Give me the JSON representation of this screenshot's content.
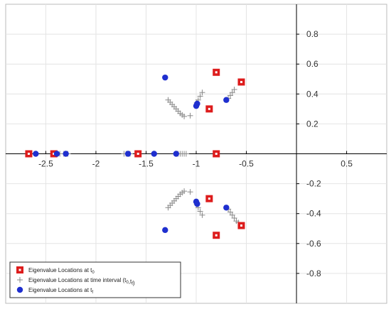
{
  "chart_data": {
    "type": "scatter",
    "title": "",
    "xlabel": "",
    "ylabel": "",
    "xlim": [
      -2.9,
      0.9
    ],
    "ylim": [
      -1.0,
      1.0
    ],
    "grid": true,
    "legend_position": "bottom-left",
    "x_ticks": [
      -2.5,
      -2,
      -1.5,
      -1,
      -0.5,
      0.5
    ],
    "x_tick_labels": [
      "-2.5",
      "-2",
      "-1.5",
      "-1",
      "-0.5",
      "0.5"
    ],
    "y_ticks": [
      0.8,
      0.6,
      0.4,
      0.2,
      -0.2,
      -0.4,
      -0.6,
      -0.8
    ],
    "y_tick_labels": [
      "0.8",
      "0.6",
      "0.4",
      "0.2",
      "-0.2",
      "-0.4",
      "-0.6",
      "-0.8"
    ],
    "colors": {
      "t0": "#dd1c1c",
      "interval": "#888888",
      "tf": "#1f2fcf"
    },
    "series": [
      {
        "key": "t0",
        "marker": "square",
        "legend": {
          "main": "Eigenvalue Locations at t",
          "sub": "0",
          "tail": ""
        },
        "points": [
          [
            -2.67,
            0
          ],
          [
            -2.42,
            0
          ],
          [
            -1.58,
            0
          ],
          [
            -0.8,
            0
          ],
          [
            -0.55,
            0.48
          ],
          [
            -0.55,
            -0.48
          ],
          [
            -0.8,
            0.545
          ],
          [
            -0.8,
            -0.545
          ],
          [
            -0.87,
            0.3
          ],
          [
            -0.87,
            -0.3
          ]
        ]
      },
      {
        "key": "interval",
        "marker": "plus",
        "legend": {
          "main": "Eigenvalue Locations at time interval (t",
          "sub": "0",
          "tail": ",t",
          "sub2": "f",
          "tail2": ")"
        },
        "points": [
          [
            -2.42,
            0
          ],
          [
            -2.4,
            0
          ],
          [
            -2.38,
            0
          ],
          [
            -2.36,
            0
          ],
          [
            -2.32,
            0
          ],
          [
            -2.3,
            0
          ],
          [
            -2.28,
            0
          ],
          [
            -1.72,
            0
          ],
          [
            -1.7,
            0
          ],
          [
            -1.68,
            0
          ],
          [
            -1.66,
            0
          ],
          [
            -1.2,
            0
          ],
          [
            -1.18,
            0
          ],
          [
            -1.16,
            0
          ],
          [
            -1.14,
            0
          ],
          [
            -1.12,
            0
          ],
          [
            -1.1,
            0
          ],
          [
            -1.28,
            0.36
          ],
          [
            -1.26,
            0.345
          ],
          [
            -1.24,
            0.33
          ],
          [
            -1.22,
            0.315
          ],
          [
            -1.2,
            0.3
          ],
          [
            -1.18,
            0.285
          ],
          [
            -1.16,
            0.27
          ],
          [
            -1.14,
            0.26
          ],
          [
            -1.12,
            0.25
          ],
          [
            -1.06,
            0.255
          ],
          [
            -1.28,
            -0.36
          ],
          [
            -1.26,
            -0.345
          ],
          [
            -1.24,
            -0.33
          ],
          [
            -1.22,
            -0.315
          ],
          [
            -1.2,
            -0.3
          ],
          [
            -1.18,
            -0.285
          ],
          [
            -1.16,
            -0.27
          ],
          [
            -1.14,
            -0.26
          ],
          [
            -1.12,
            -0.25
          ],
          [
            -1.06,
            -0.255
          ],
          [
            -0.995,
            0.34
          ],
          [
            -0.98,
            0.36
          ],
          [
            -0.96,
            0.385
          ],
          [
            -0.94,
            0.41
          ],
          [
            -0.995,
            -0.34
          ],
          [
            -0.98,
            -0.36
          ],
          [
            -0.96,
            -0.385
          ],
          [
            -0.94,
            -0.41
          ],
          [
            -0.68,
            0.37
          ],
          [
            -0.66,
            0.39
          ],
          [
            -0.64,
            0.41
          ],
          [
            -0.62,
            0.43
          ],
          [
            -0.68,
            -0.37
          ],
          [
            -0.66,
            -0.39
          ],
          [
            -0.64,
            -0.41
          ],
          [
            -0.62,
            -0.43
          ],
          [
            -0.6,
            -0.45
          ],
          [
            -0.58,
            -0.46
          ]
        ]
      },
      {
        "key": "tf",
        "marker": "circle",
        "legend": {
          "main": "Eigenvalue Locations at t",
          "sub": "f",
          "tail": ""
        },
        "points": [
          [
            -2.6,
            0
          ],
          [
            -2.39,
            0
          ],
          [
            -2.3,
            0
          ],
          [
            -1.2,
            0
          ],
          [
            -1.42,
            0
          ],
          [
            -1.68,
            0
          ],
          [
            -1.31,
            0.51
          ],
          [
            -1.31,
            -0.51
          ],
          [
            -1.0,
            0.32
          ],
          [
            -1.0,
            -0.32
          ],
          [
            -0.99,
            0.335
          ],
          [
            -0.99,
            -0.335
          ],
          [
            -0.7,
            0.36
          ],
          [
            -0.7,
            -0.36
          ]
        ]
      }
    ]
  }
}
